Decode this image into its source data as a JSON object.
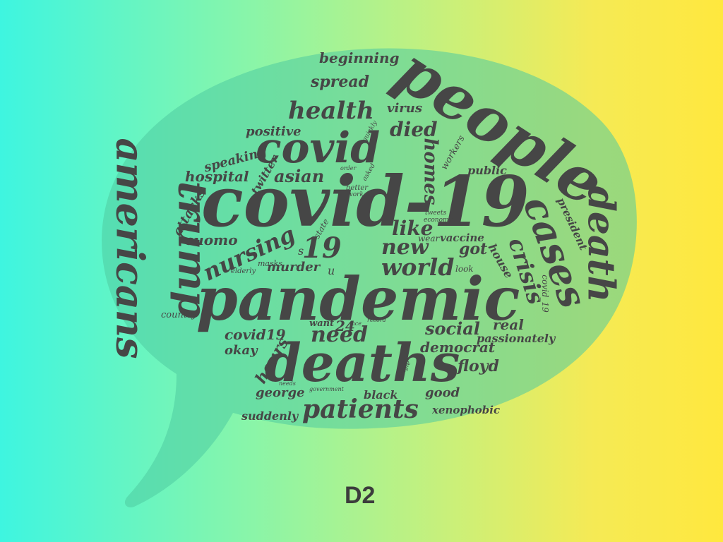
{
  "caption": "D2",
  "colors": {
    "text": "#464646",
    "bubble": "#4fcaa0",
    "gradient_start": "#3ef5e0",
    "gradient_end": "#ffe83e"
  },
  "words": {
    "covid_19": "covid-19",
    "people": "people",
    "pandemic": "pandemic",
    "deaths": "deaths",
    "covid": "covid",
    "americans": "americans",
    "trump": "trump",
    "cases": "cases",
    "death": "death",
    "crisis": "crisis",
    "nursing": "nursing",
    "world": "world",
    "new": "new",
    "patients": "patients",
    "health": "health",
    "nineteen": "19",
    "like": "like",
    "died": "died",
    "homes": "homes",
    "asian": "asian",
    "hospital": "hospital",
    "speaking": "speaking",
    "positive": "positive",
    "spread": "spread",
    "beginning": "beginning",
    "virus": "virus",
    "twitter": "twitter",
    "attacks": "attacks",
    "cuomo": "cuomo",
    "murder": "murder",
    "got": "got",
    "vaccine": "vaccine",
    "public": "public",
    "social": "social",
    "need": "need",
    "covid19": "covid19",
    "twentyfour": "24",
    "want": "want",
    "okay": "okay",
    "hours": "hours",
    "george": "george",
    "democrat": "democrat",
    "floyd": "floyd",
    "real": "real",
    "passionately": "passionately",
    "good": "good",
    "xenophobic": "xenophobic",
    "black": "black",
    "suddenly": "suddenly",
    "country": "country",
    "house": "house",
    "look": "look",
    "president": "president",
    "covid_19u": "covid_19",
    "workers": "workers",
    "wear": "wear",
    "state": "state",
    "masks": "masks",
    "elderly": "elderly",
    "u": "u",
    "s": "s",
    "better": "better",
    "work": "work",
    "quickly": "quickly",
    "government": "government",
    "economy": "economy",
    "single": "single",
    "record": "record",
    "asked": "asked",
    "order": "order",
    "tweets": "tweets",
    "needs": "needs",
    "face": "face"
  }
}
